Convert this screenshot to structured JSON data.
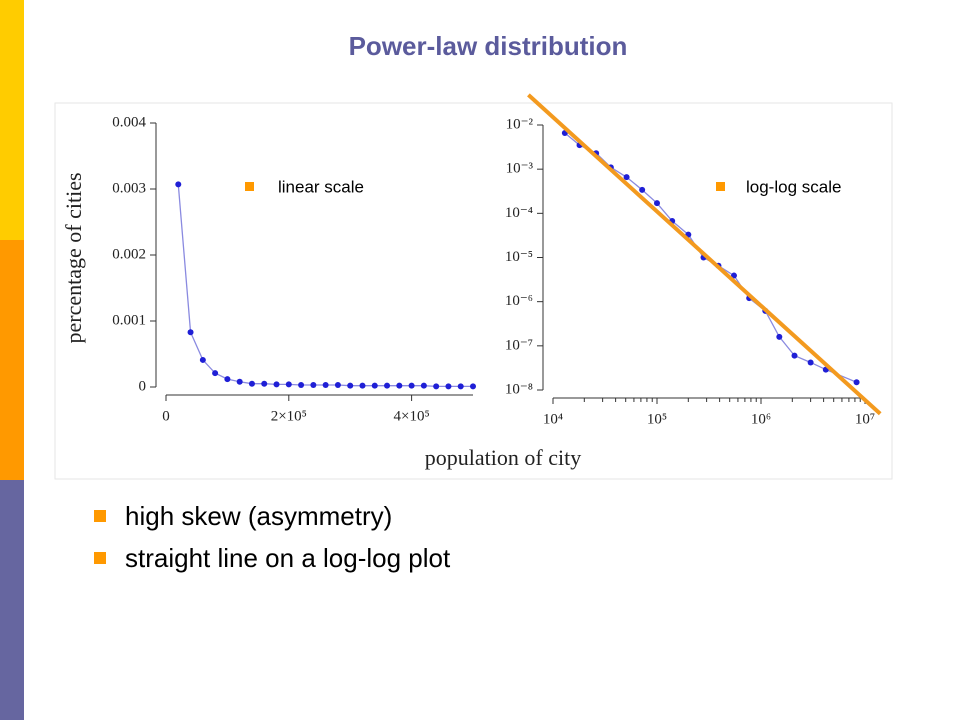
{
  "title": "Power-law distribution",
  "bullets": [
    "high skew (asymmetry)",
    "straight line on a log-log plot"
  ],
  "chart_data": [
    {
      "type": "line",
      "annotation": "linear scale",
      "xlabel": "population of city",
      "ylabel": "percentage of cities",
      "color": "#1f1fd6",
      "marker": true,
      "x": [
        20000,
        40000,
        60000,
        80000,
        100000,
        120000,
        140000,
        160000,
        180000,
        200000,
        220000,
        240000,
        260000,
        280000,
        300000,
        320000,
        340000,
        360000,
        380000,
        400000,
        420000,
        440000,
        460000,
        480000,
        500000
      ],
      "values": [
        0.00307,
        0.00083,
        0.00041,
        0.00021,
        0.00012,
        8e-05,
        5e-05,
        5e-05,
        4e-05,
        4e-05,
        3e-05,
        3e-05,
        3e-05,
        3e-05,
        2e-05,
        2e-05,
        2e-05,
        2e-05,
        2e-05,
        2e-05,
        2e-05,
        1e-05,
        1e-05,
        1e-05,
        1e-05
      ],
      "xlim": [
        0,
        500000
      ],
      "xticks": [
        0,
        {
          "value": 200000,
          "label": "2×10⁵"
        },
        {
          "value": 400000,
          "label": "4×10⁵"
        }
      ],
      "ylim": [
        0,
        0.004
      ],
      "yticks": [
        0,
        0.001,
        0.002,
        0.003,
        0.004
      ]
    },
    {
      "type": "line",
      "annotation": "log-log scale",
      "xscale": "log",
      "yscale": "log",
      "color": "#1f1fd6",
      "marker": true,
      "x": [
        13000,
        18000,
        26000,
        36000,
        51000,
        72000,
        100000,
        140000,
        200000,
        280000,
        390000,
        550000,
        770000,
        1100000,
        1500000,
        2100000,
        3000000,
        4200000,
        8300000
      ],
      "values": [
        0.0066,
        0.0035,
        0.0023,
        0.0011,
        0.00066,
        0.00034,
        0.00017,
        6.7e-05,
        3.3e-05,
        1e-05,
        6.5e-06,
        3.9e-06,
        1.2e-06,
        6.2e-07,
        1.6e-07,
        6e-08,
        4.2e-08,
        2.9e-08,
        1.5e-08
      ],
      "xlim": [
        10000,
        10000000
      ],
      "xticks": [
        {
          "value": 10000,
          "label": "10⁴"
        },
        {
          "value": 100000,
          "label": "10⁵"
        },
        {
          "value": 1000000,
          "label": "10⁶"
        },
        {
          "value": 10000000,
          "label": "10⁷"
        }
      ],
      "ylim": [
        1e-08,
        0.01
      ],
      "yticks": [
        {
          "value": 1e-08,
          "label": "10⁻⁸"
        },
        {
          "value": 1e-07,
          "label": "10⁻⁷"
        },
        {
          "value": 1e-06,
          "label": "10⁻⁶"
        },
        {
          "value": 1e-05,
          "label": "10⁻⁵"
        },
        {
          "value": 0.0001,
          "label": "10⁻⁴"
        },
        {
          "value": 0.001,
          "label": "10⁻³"
        },
        {
          "value": 0.01,
          "label": "10⁻²"
        }
      ],
      "fit_line": {
        "color": "#f39a1f",
        "x": [
          5800,
          14000000
        ],
        "values": [
          0.048,
          2.9e-09
        ]
      }
    }
  ]
}
